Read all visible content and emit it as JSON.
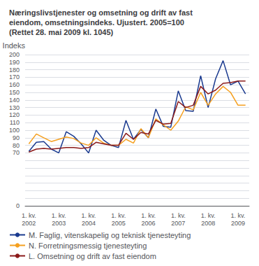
{
  "chart_data": {
    "type": "line",
    "title": "Næringslivstjenester og omsetning og drift av fast\neiendom, omsetningsindeks. Ujustert. 2005=100\n(Rettet 28. mai 2009 kl. 1045)",
    "ylabel": "Indeks",
    "categories": [
      "1. kv.\n2002",
      null,
      null,
      null,
      "1. kv.\n2003",
      null,
      null,
      null,
      "1. kv.\n2004",
      null,
      null,
      null,
      "1. kv.\n2005",
      null,
      null,
      null,
      "1. kv.\n2006",
      null,
      null,
      null,
      "1. kv.\n2007",
      null,
      null,
      null,
      "1. kv.\n2008",
      null,
      null,
      null,
      "1. kv.\n2009",
      null
    ],
    "series": [
      {
        "name": "M. Faglig, vitenskapelig og teknisk tjenesteyting",
        "color": "#1a3a8f",
        "values": [
          72,
          84,
          85,
          75,
          70,
          98,
          92,
          82,
          70,
          100,
          87,
          80,
          77,
          113,
          88,
          101,
          90,
          128,
          105,
          104,
          152,
          126,
          125,
          172,
          130,
          168,
          192,
          160,
          165,
          148
        ]
      },
      {
        "name": "N. Forretningsmessig tjenesteyting",
        "color": "#f5a020",
        "values": [
          82,
          95,
          90,
          85,
          88,
          91,
          89,
          83,
          80,
          90,
          83,
          80,
          80,
          88,
          83,
          102,
          90,
          115,
          107,
          100,
          112,
          131,
          127,
          150,
          133,
          148,
          158,
          150,
          133,
          133
        ]
      },
      {
        "name": "L. Omsetning og drift av fast eiendom",
        "color": "#8b1a1a",
        "values": [
          71,
          75,
          76,
          75,
          76,
          77,
          77,
          76,
          77,
          84,
          82,
          80,
          80,
          96,
          88,
          97,
          95,
          113,
          108,
          109,
          138,
          130,
          133,
          158,
          148,
          153,
          162,
          163,
          165,
          165
        ]
      }
    ],
    "ylim": [
      0,
      200
    ],
    "yticks": [
      0,
      {
        "value": 10,
        "label": ""
      },
      {
        "value": 20,
        "label": ""
      },
      {
        "value": 30,
        "label": ""
      },
      {
        "value": 40,
        "label": ""
      },
      {
        "value": 50,
        "label": ""
      },
      {
        "value": 60,
        "label": ""
      },
      70,
      80,
      90,
      100,
      110,
      120,
      130,
      140,
      150,
      160,
      170,
      180,
      190,
      200
    ],
    "grid": true,
    "legend": "lower left"
  }
}
